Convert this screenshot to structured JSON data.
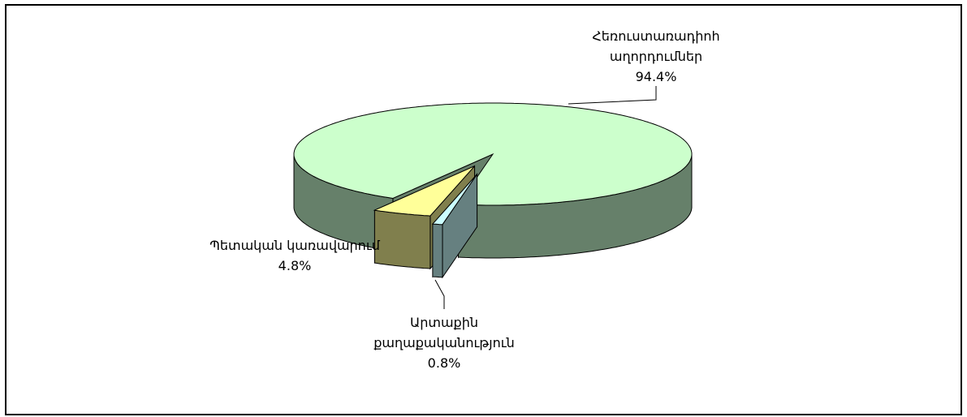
{
  "chart_data": {
    "type": "pie",
    "categories": [
      "Հեռուստառադիոհաղորդումներ",
      "Պետական կառավարում",
      "Արտաքին քաղաքականություն"
    ],
    "values": [
      94.4,
      4.8,
      0.8
    ],
    "value_labels": [
      "94.4%",
      "4.8%",
      "0.8%"
    ],
    "colors": [
      "#ccffcc",
      "#ffff99",
      "#ccffff"
    ],
    "side_colors": [
      "#66806a",
      "#807f4d",
      "#668080"
    ]
  }
}
